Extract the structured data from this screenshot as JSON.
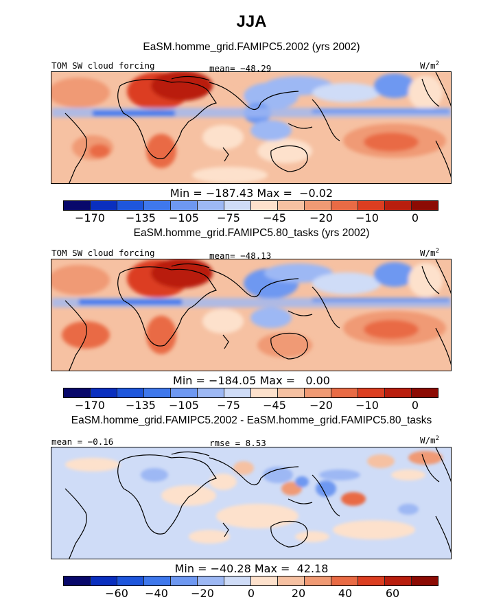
{
  "title": "JJA",
  "colors": [
    "#08086b",
    "#0a2fbf",
    "#1e56dc",
    "#3f78ec",
    "#6e98f1",
    "#9db8f4",
    "#cfdcf7",
    "#fde1cc",
    "#f6c1a2",
    "#f09a74",
    "#e96b45",
    "#dc3e21",
    "#b91e0e",
    "#8c0b04"
  ],
  "panels": [
    {
      "subtitle": "EaSM.homme_grid.FAMIPC5.2002 (yrs 2002)",
      "left_label": "TOM SW cloud forcing",
      "center_label": "mean= −48.29",
      "right_label": "W/m",
      "right_sup": "2",
      "minmax": "Min = −187.43 Max =  −0.02",
      "ticks": [
        "−170",
        "−135",
        "−105",
        "−75",
        "−45",
        "−20",
        "−10",
        "0"
      ]
    },
    {
      "subtitle": "EaSM.homme_grid.FAMIPC5.80_tasks (yrs 2002)",
      "left_label": "TOM SW cloud forcing",
      "center_label": "mean= −48.13",
      "right_label": "W/m",
      "right_sup": "2",
      "minmax": "Min = −184.05 Max =   0.00",
      "ticks": [
        "−170",
        "−135",
        "−105",
        "−75",
        "−45",
        "−20",
        "−10",
        "0"
      ]
    },
    {
      "subtitle": "EaSM.homme_grid.FAMIPC5.2002 - EaSM.homme_grid.FAMIPC5.80_tasks",
      "left_label": "mean =  −0.16",
      "center_label": "rmse =   8.53",
      "right_label": "W/m",
      "right_sup": "2",
      "minmax": "Min = −40.28 Max =  42.18",
      "ticks": [
        "−60",
        "−40",
        "−20",
        "0",
        "20",
        "40",
        "60"
      ]
    }
  ]
}
